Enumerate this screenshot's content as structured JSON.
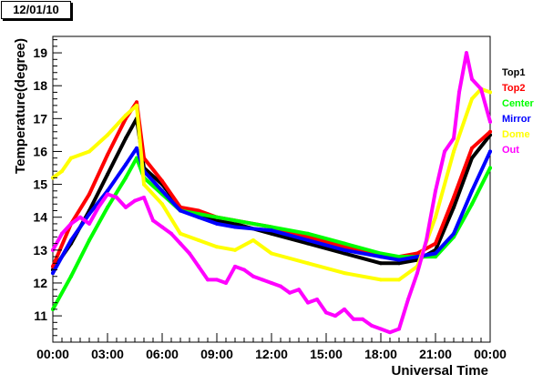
{
  "header": {
    "date_label": "12/01/10"
  },
  "chart_data": {
    "type": "scatter",
    "title": "",
    "xlabel": "Universal Time",
    "ylabel": "Temperature(degree)",
    "xlim": [
      0,
      24
    ],
    "ylim": [
      10.2,
      19.5
    ],
    "x_ticks": [
      {
        "value": 0,
        "label": "00:00"
      },
      {
        "value": 3,
        "label": "03:00"
      },
      {
        "value": 6,
        "label": "06:00"
      },
      {
        "value": 9,
        "label": "09:00"
      },
      {
        "value": 12,
        "label": "12:00"
      },
      {
        "value": 15,
        "label": "15:00"
      },
      {
        "value": 18,
        "label": "18:00"
      },
      {
        "value": 21,
        "label": "21:00"
      },
      {
        "value": 24,
        "label": "00:00"
      }
    ],
    "y_ticks": [
      11,
      12,
      13,
      14,
      15,
      16,
      17,
      18,
      19
    ],
    "grid": false,
    "legend_position": "right",
    "series": [
      {
        "name": "Top1",
        "color": "#000000",
        "x": [
          0,
          1,
          2,
          3,
          4,
          4.6,
          5,
          6,
          7,
          8,
          9,
          10,
          12,
          14,
          16,
          18,
          19,
          20,
          21,
          22,
          23,
          24
        ],
        "y": [
          12.4,
          13.2,
          14.2,
          15.3,
          16.4,
          17.0,
          15.5,
          15.0,
          14.3,
          14.1,
          13.9,
          13.8,
          13.5,
          13.2,
          12.9,
          12.6,
          12.6,
          12.7,
          13.0,
          14.3,
          15.8,
          16.5
        ]
      },
      {
        "name": "Top2",
        "color": "#ff0000",
        "x": [
          0,
          1,
          2,
          3,
          4,
          4.6,
          5,
          6,
          7,
          8,
          9,
          10,
          12,
          14,
          16,
          18,
          19,
          20,
          21,
          22,
          23,
          24
        ],
        "y": [
          12.5,
          13.8,
          14.7,
          15.9,
          17.0,
          17.5,
          15.8,
          15.1,
          14.3,
          14.2,
          14.0,
          13.9,
          13.7,
          13.4,
          13.1,
          12.8,
          12.8,
          12.9,
          13.2,
          14.6,
          16.1,
          16.6
        ]
      },
      {
        "name": "Center",
        "color": "#00ff00",
        "x": [
          0,
          1,
          2,
          3,
          4,
          4.6,
          5,
          6,
          7,
          8,
          9,
          10,
          12,
          14,
          16,
          18,
          19,
          20,
          21,
          22,
          23,
          24
        ],
        "y": [
          11.2,
          12.2,
          13.3,
          14.3,
          15.2,
          15.8,
          15.2,
          14.7,
          14.2,
          14.1,
          14.0,
          13.9,
          13.7,
          13.5,
          13.2,
          12.9,
          12.8,
          12.8,
          12.8,
          13.4,
          14.4,
          15.5
        ]
      },
      {
        "name": "Mirror",
        "color": "#0000ff",
        "x": [
          0,
          1,
          2,
          3,
          4,
          4.6,
          5,
          6,
          7,
          8,
          9,
          10,
          12,
          14,
          16,
          18,
          19,
          20,
          21,
          22,
          23,
          24
        ],
        "y": [
          12.3,
          13.3,
          14.1,
          14.8,
          15.6,
          16.1,
          15.4,
          14.8,
          14.2,
          14.0,
          13.8,
          13.7,
          13.6,
          13.3,
          13.0,
          12.8,
          12.7,
          12.8,
          12.9,
          13.5,
          14.8,
          16.0
        ]
      },
      {
        "name": "Dome",
        "color": "#ffff00",
        "x": [
          0,
          0.5,
          1,
          2,
          3,
          4,
          4.6,
          5,
          6,
          7,
          8,
          9,
          10,
          11,
          12,
          14,
          16,
          18,
          19,
          20,
          21,
          22,
          23,
          23.5,
          24
        ],
        "y": [
          15.2,
          15.4,
          15.8,
          16.0,
          16.5,
          17.1,
          17.4,
          15.0,
          14.4,
          13.5,
          13.3,
          13.1,
          13.0,
          13.3,
          12.9,
          12.6,
          12.3,
          12.1,
          12.1,
          12.5,
          14.0,
          16.0,
          17.6,
          17.9,
          17.8
        ]
      },
      {
        "name": "Out",
        "color": "#ff00ff",
        "x": [
          0,
          0.5,
          1,
          1.5,
          2,
          2.5,
          3,
          3.5,
          4,
          4.5,
          5,
          5.5,
          6,
          6.5,
          7,
          7.5,
          8,
          8.5,
          9,
          9.5,
          10,
          10.5,
          11,
          11.5,
          12,
          12.5,
          13,
          13.5,
          14,
          14.5,
          15,
          15.5,
          16,
          16.5,
          17,
          17.5,
          18,
          18.5,
          19,
          19.5,
          20,
          20.5,
          21,
          21.5,
          22,
          22.3,
          22.7,
          23,
          23.5,
          24
        ],
        "y": [
          13.0,
          13.5,
          13.8,
          14.0,
          13.8,
          14.3,
          14.7,
          14.6,
          14.3,
          14.5,
          14.6,
          13.9,
          13.7,
          13.5,
          13.2,
          12.9,
          12.5,
          12.1,
          12.1,
          12.0,
          12.5,
          12.4,
          12.2,
          12.1,
          12.0,
          11.9,
          11.7,
          11.8,
          11.4,
          11.5,
          11.1,
          11.0,
          11.2,
          10.9,
          10.9,
          10.7,
          10.6,
          10.5,
          10.6,
          11.5,
          12.3,
          13.3,
          14.8,
          16.0,
          16.4,
          17.8,
          19.0,
          18.2,
          17.9,
          16.9
        ]
      }
    ]
  }
}
